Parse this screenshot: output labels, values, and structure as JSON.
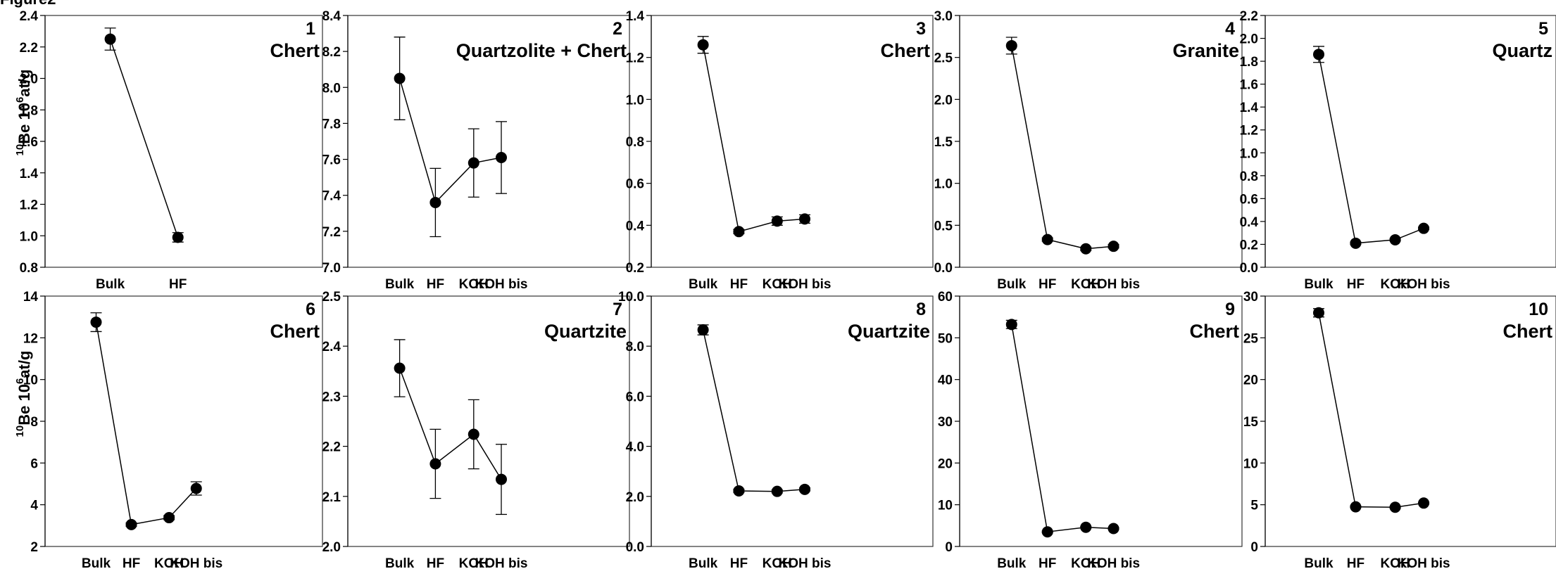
{
  "figure_label": "Figure2",
  "y_axis_label": {
    "pre": "10",
    "main": "Be 10",
    "sup": "6",
    "unit": "at/g"
  },
  "chart_data": [
    {
      "type": "line",
      "panel": "1",
      "title": "Chert",
      "categories": [
        "Bulk",
        "HF"
      ],
      "values": [
        2.25,
        0.99
      ],
      "errors": [
        0.07,
        0.03
      ],
      "ylim": [
        0.8,
        2.4
      ],
      "yticks": [
        "0.8",
        "1.0",
        "1.2",
        "1.4",
        "1.6",
        "1.8",
        "2.0",
        "2.2",
        "2.4"
      ]
    },
    {
      "type": "line",
      "panel": "2",
      "title": "Quartzolite + Chert",
      "categories": [
        "Bulk",
        "HF",
        "KOH",
        "KOH bis"
      ],
      "values": [
        8.05,
        7.36,
        7.58,
        7.61
      ],
      "errors": [
        0.23,
        0.19,
        0.19,
        0.2
      ],
      "ylim": [
        7.0,
        8.4
      ],
      "yticks": [
        "7.0",
        "7.2",
        "7.4",
        "7.6",
        "7.8",
        "8.0",
        "8.2",
        "8.4"
      ]
    },
    {
      "type": "line",
      "panel": "3",
      "title": "Chert",
      "categories": [
        "Bulk",
        "HF",
        "KOH",
        "KOH bis"
      ],
      "values": [
        1.26,
        0.37,
        0.42,
        0.43
      ],
      "errors": [
        0.04,
        0.01,
        0.02,
        0.02
      ],
      "ylim": [
        0.2,
        1.4
      ],
      "yticks": [
        "0.2",
        "0.4",
        "0.6",
        "0.8",
        "1.0",
        "1.2",
        "1.4"
      ]
    },
    {
      "type": "line",
      "panel": "4",
      "title": "Granite",
      "categories": [
        "Bulk",
        "HF",
        "KOH",
        "KOH bis"
      ],
      "values": [
        2.64,
        0.33,
        0.22,
        0.25
      ],
      "errors": [
        0.1,
        0.02,
        0.02,
        0.02
      ],
      "ylim": [
        0.0,
        3.0
      ],
      "yticks": [
        "0.0",
        "0.5",
        "1.0",
        "1.5",
        "2.0",
        "2.5",
        "3.0"
      ]
    },
    {
      "type": "line",
      "panel": "5",
      "title": "Quartz",
      "categories": [
        "Bulk",
        "HF",
        "KOH",
        "KOH bis"
      ],
      "values": [
        1.86,
        0.21,
        0.24,
        0.34
      ],
      "errors": [
        0.07,
        0.01,
        0.01,
        0.01
      ],
      "ylim": [
        0.0,
        2.2
      ],
      "yticks": [
        "0.0",
        "0.2",
        "0.4",
        "0.6",
        "0.8",
        "1.0",
        "1.2",
        "1.4",
        "1.6",
        "1.8",
        "2.0",
        "2.2"
      ]
    },
    {
      "type": "line",
      "panel": "6",
      "title": "Chert",
      "categories": [
        "Bulk",
        "HF",
        "KOH",
        "KOH bis"
      ],
      "values": [
        12.75,
        3.05,
        3.38,
        4.78
      ],
      "errors": [
        0.45,
        0.08,
        0.1,
        0.32
      ],
      "ylim": [
        2,
        14
      ],
      "yticks": [
        "2",
        "4",
        "6",
        "8",
        "10",
        "12",
        "14"
      ]
    },
    {
      "type": "line",
      "panel": "7",
      "title": "Quartzite",
      "categories": [
        "Bulk",
        "HF",
        "KOH",
        "KOH bis"
      ],
      "values": [
        2.356,
        2.165,
        2.224,
        2.134
      ],
      "errors": [
        0.057,
        0.069,
        0.069,
        0.07
      ],
      "ylim": [
        2.0,
        2.5
      ],
      "yticks": [
        "2.0",
        "2.1",
        "2.2",
        "2.3",
        "2.4",
        "2.5"
      ]
    },
    {
      "type": "line",
      "panel": "8",
      "title": "Quartzite",
      "categories": [
        "Bulk",
        "HF",
        "KOH",
        "KOH bis"
      ],
      "values": [
        8.65,
        2.22,
        2.2,
        2.28
      ],
      "errors": [
        0.2,
        0.06,
        0.06,
        0.06
      ],
      "ylim": [
        0.0,
        10.0
      ],
      "yticks": [
        "0.0",
        "2.0",
        "4.0",
        "6.0",
        "8.0",
        "10.0"
      ]
    },
    {
      "type": "line",
      "panel": "9",
      "title": "Chert",
      "categories": [
        "Bulk",
        "HF",
        "KOH",
        "KOH bis"
      ],
      "values": [
        53.2,
        3.5,
        4.6,
        4.3
      ],
      "errors": [
        1.0,
        0.2,
        0.2,
        0.2
      ],
      "ylim": [
        0,
        60
      ],
      "yticks": [
        "0",
        "10",
        "20",
        "30",
        "40",
        "50",
        "60"
      ]
    },
    {
      "type": "line",
      "panel": "10",
      "title": "Chert",
      "categories": [
        "Bulk",
        "HF",
        "KOH",
        "KOH bis"
      ],
      "values": [
        28.0,
        4.75,
        4.7,
        5.2
      ],
      "errors": [
        0.5,
        0.1,
        0.1,
        0.1
      ],
      "ylim": [
        0,
        30
      ],
      "yticks": [
        "0",
        "5",
        "10",
        "15",
        "20",
        "25",
        "30"
      ]
    }
  ]
}
